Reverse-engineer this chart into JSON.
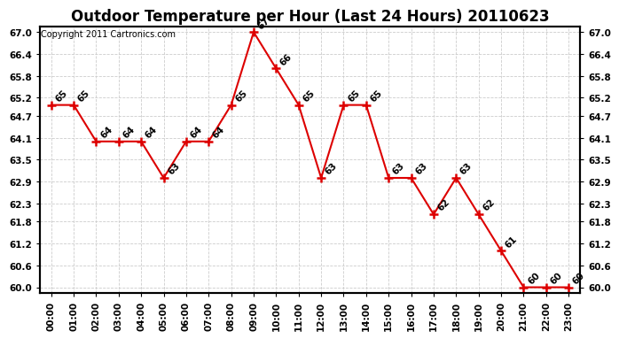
{
  "title": "Outdoor Temperature per Hour (Last 24 Hours) 20110623",
  "copyright_text": "Copyright 2011 Cartronics.com",
  "hours": [
    "00:00",
    "01:00",
    "02:00",
    "03:00",
    "04:00",
    "05:00",
    "06:00",
    "07:00",
    "08:00",
    "09:00",
    "10:00",
    "11:00",
    "12:00",
    "13:00",
    "14:00",
    "15:00",
    "16:00",
    "17:00",
    "18:00",
    "19:00",
    "20:00",
    "21:00",
    "22:00",
    "23:00"
  ],
  "temps": [
    65,
    65,
    64,
    64,
    64,
    63,
    64,
    64,
    65,
    67,
    66,
    65,
    63,
    65,
    65,
    63,
    63,
    62,
    63,
    62,
    61,
    60,
    60,
    60
  ],
  "line_color": "#dd0000",
  "marker": "+",
  "marker_size": 7,
  "marker_linewidth": 1.8,
  "grid_color": "#cccccc",
  "bg_color": "#ffffff",
  "ylim_min": 60.0,
  "ylim_max": 67.0,
  "yticks": [
    60.0,
    60.6,
    61.2,
    61.8,
    62.3,
    62.9,
    63.5,
    64.1,
    64.7,
    65.2,
    65.8,
    66.4,
    67.0
  ],
  "label_fontsize": 7.5,
  "title_fontsize": 12,
  "copyright_fontsize": 7,
  "annotation_fontsize": 7.5
}
